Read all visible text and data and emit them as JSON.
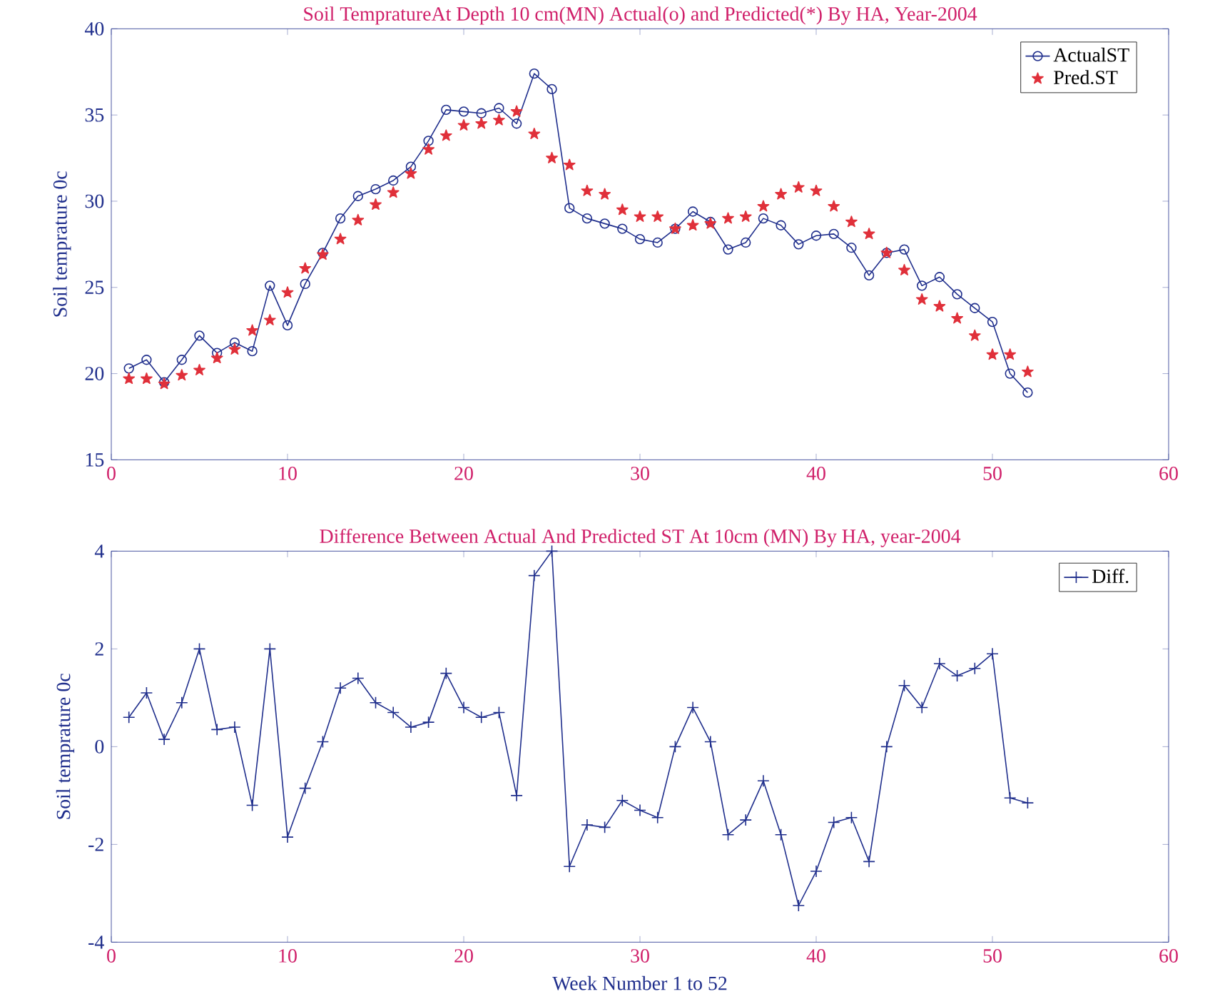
{
  "chart_data": [
    {
      "type": "line",
      "title": "Soil TempratureAt Depth 10 cm(MN) Actual(o) and Predicted(*) By HA, Year-2004",
      "ylabel": "Soil temprature 0c",
      "x": [
        1,
        2,
        3,
        4,
        5,
        6,
        7,
        8,
        9,
        10,
        11,
        12,
        13,
        14,
        15,
        16,
        17,
        18,
        19,
        20,
        21,
        22,
        23,
        24,
        25,
        26,
        27,
        28,
        29,
        30,
        31,
        32,
        33,
        34,
        35,
        36,
        37,
        38,
        39,
        40,
        41,
        42,
        43,
        44,
        45,
        46,
        47,
        48,
        49,
        50,
        51,
        52
      ],
      "series": [
        {
          "name": "ActualST",
          "color": "#1f2e8c",
          "marker": "circle",
          "line_style": "solid",
          "values": [
            20.3,
            20.8,
            19.5,
            20.8,
            22.2,
            21.2,
            21.8,
            21.3,
            25.1,
            22.8,
            25.2,
            27.0,
            29.0,
            30.3,
            30.7,
            31.2,
            32.0,
            33.5,
            35.3,
            35.2,
            35.1,
            35.4,
            34.5,
            37.4,
            36.5,
            29.6,
            29.0,
            28.7,
            28.4,
            27.8,
            27.6,
            28.4,
            29.4,
            28.8,
            27.2,
            27.6,
            29.0,
            28.6,
            27.5,
            28.0,
            28.1,
            27.3,
            25.7,
            27.0,
            27.2,
            25.1,
            25.6,
            24.6,
            23.8,
            23.0,
            20.0,
            18.9
          ]
        },
        {
          "name": "Pred.ST",
          "type": "scatter",
          "color": "#e0303a",
          "marker": "star",
          "values": [
            19.7,
            19.7,
            19.4,
            19.9,
            20.2,
            20.9,
            21.4,
            22.5,
            23.1,
            24.7,
            26.1,
            26.9,
            27.8,
            28.9,
            29.8,
            30.5,
            31.6,
            33.0,
            33.8,
            34.4,
            34.5,
            34.7,
            35.2,
            33.9,
            32.5,
            32.1,
            30.6,
            30.4,
            29.5,
            29.1,
            29.1,
            28.4,
            28.6,
            28.7,
            29.0,
            29.1,
            29.7,
            30.4,
            30.8,
            30.6,
            29.7,
            28.8,
            28.1,
            27.0,
            26.0,
            24.3,
            23.9,
            23.2,
            22.2,
            21.1,
            21.1,
            20.1
          ]
        }
      ],
      "xlim": [
        0,
        60
      ],
      "xticks": [
        0,
        10,
        20,
        30,
        40,
        50,
        60
      ],
      "ylim": [
        15,
        40
      ],
      "yticks": [
        15,
        20,
        25,
        30,
        35,
        40
      ],
      "legend": "top right"
    },
    {
      "type": "line",
      "title": "Difference Between Actual And Predicted ST At 10cm (MN) By HA, year-2004",
      "xlabel": "Week Number 1 to 52",
      "ylabel": "Soil temprature 0c",
      "x": [
        1,
        2,
        3,
        4,
        5,
        6,
        7,
        8,
        9,
        10,
        11,
        12,
        13,
        14,
        15,
        16,
        17,
        18,
        19,
        20,
        21,
        22,
        23,
        24,
        25,
        26,
        27,
        28,
        29,
        30,
        31,
        32,
        33,
        34,
        35,
        36,
        37,
        38,
        39,
        40,
        41,
        42,
        43,
        44,
        45,
        46,
        47,
        48,
        49,
        50,
        51,
        52
      ],
      "series": [
        {
          "name": "Diff.",
          "color": "#1f2e8c",
          "marker": "cross",
          "line_style": "solid",
          "values": [
            0.6,
            1.1,
            0.15,
            0.9,
            2.0,
            0.35,
            0.4,
            -1.2,
            2.0,
            -1.85,
            -0.85,
            0.1,
            1.2,
            1.4,
            0.9,
            0.7,
            0.4,
            0.5,
            1.5,
            0.8,
            0.6,
            0.7,
            -1.0,
            3.5,
            4.0,
            -2.45,
            -1.6,
            -1.65,
            -1.1,
            -1.3,
            -1.45,
            0.0,
            0.8,
            0.1,
            -1.8,
            -1.5,
            -0.7,
            -1.8,
            -3.25,
            -2.55,
            -1.55,
            -1.45,
            -2.35,
            0.0,
            1.25,
            0.8,
            1.7,
            1.45,
            1.6,
            1.9,
            -1.05,
            -1.15
          ]
        }
      ],
      "xlim": [
        0,
        60
      ],
      "xticks": [
        0,
        10,
        20,
        30,
        40,
        50,
        60
      ],
      "ylim": [
        -4,
        4
      ],
      "yticks": [
        -4,
        -2,
        0,
        2,
        4
      ],
      "legend": "top right"
    }
  ]
}
